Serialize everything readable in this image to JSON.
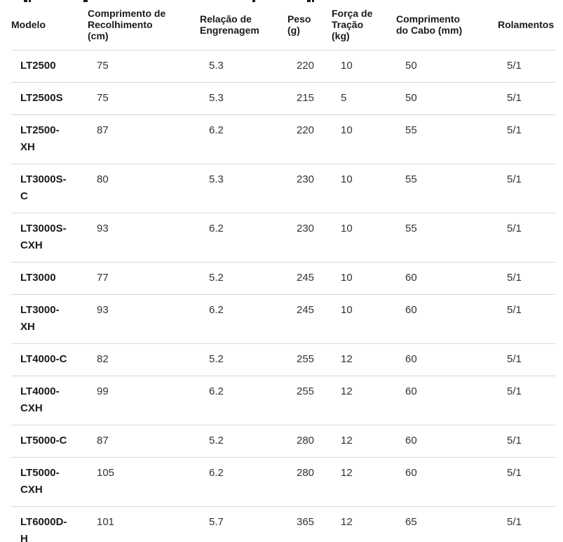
{
  "colors": {
    "background": "#ffffff",
    "divider": "#d9d9d9",
    "header_text": "#1a1a1a",
    "value_text": "#333333"
  },
  "table": {
    "columns": [
      {
        "key": "modelo",
        "label": "Modelo"
      },
      {
        "key": "recolhimento",
        "label": "Comprimento de\nRecolhimento\n(cm)"
      },
      {
        "key": "relacao",
        "label": "Relação de\nEngrenagem"
      },
      {
        "key": "peso",
        "label": "Peso\n(g)"
      },
      {
        "key": "forca",
        "label": "Força de\nTração\n(kg)"
      },
      {
        "key": "cabo",
        "label": "Comprimento\ndo Cabo (mm)"
      },
      {
        "key": "rolamentos",
        "label": "Rolamentos"
      }
    ],
    "rows": [
      [
        "LT2500",
        "75",
        "5.3",
        "220",
        "10",
        "50",
        "5/1"
      ],
      [
        "LT2500S",
        "75",
        "5.3",
        "215",
        "5",
        "50",
        "5/1"
      ],
      [
        "LT2500-XH",
        "87",
        "6.2",
        "220",
        "10",
        "55",
        "5/1"
      ],
      [
        "LT3000S-C",
        "80",
        "5.3",
        "230",
        "10",
        "55",
        "5/1"
      ],
      [
        "LT3000S-CXH",
        "93",
        "6.2",
        "230",
        "10",
        "55",
        "5/1"
      ],
      [
        "LT3000",
        "77",
        "5.2",
        "245",
        "10",
        "60",
        "5/1"
      ],
      [
        "LT3000-XH",
        "93",
        "6.2",
        "245",
        "10",
        "60",
        "5/1"
      ],
      [
        "LT4000-C",
        "82",
        "5.2",
        "255",
        "12",
        "60",
        "5/1"
      ],
      [
        "LT4000-CXH",
        "99",
        "6.2",
        "255",
        "12",
        "60",
        "5/1"
      ],
      [
        "LT5000-C",
        "87",
        "5.2",
        "280",
        "12",
        "60",
        "5/1"
      ],
      [
        "LT5000-CXH",
        "105",
        "6.2",
        "280",
        "12",
        "60",
        "5/1"
      ],
      [
        "LT6000D-H",
        "101",
        "5.7",
        "365",
        "12",
        "65",
        "5/1"
      ]
    ]
  }
}
